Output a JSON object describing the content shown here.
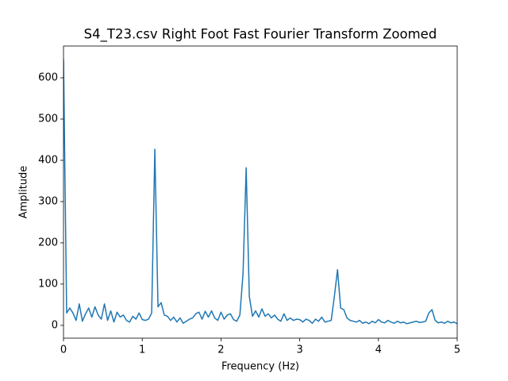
{
  "chart_data": {
    "type": "line",
    "title": "S4_T23.csv Right Foot Fast Fourier Transform Zoomed",
    "xlabel": "Frequency (Hz)",
    "ylabel": "Amplitude",
    "color": "#1f77b4",
    "xlim": [
      0,
      5
    ],
    "xticks": [
      0,
      1,
      2,
      3,
      4,
      5
    ],
    "ylim": [
      -31,
      677
    ],
    "yticks": [
      0,
      100,
      200,
      300,
      400,
      500,
      600
    ],
    "x": [
      0,
      0.04,
      0.08,
      0.12,
      0.16,
      0.2,
      0.24,
      0.28,
      0.32,
      0.36,
      0.4,
      0.44,
      0.48,
      0.52,
      0.56,
      0.6,
      0.64,
      0.68,
      0.72,
      0.76,
      0.8,
      0.84,
      0.88,
      0.92,
      0.96,
      1,
      1.04,
      1.08,
      1.12,
      1.16,
      1.2,
      1.24,
      1.28,
      1.32,
      1.36,
      1.4,
      1.44,
      1.48,
      1.52,
      1.56,
      1.6,
      1.64,
      1.68,
      1.72,
      1.76,
      1.8,
      1.84,
      1.88,
      1.92,
      1.96,
      2,
      2.04,
      2.08,
      2.12,
      2.16,
      2.2,
      2.24,
      2.28,
      2.32,
      2.36,
      2.4,
      2.44,
      2.48,
      2.52,
      2.56,
      2.6,
      2.64,
      2.68,
      2.72,
      2.76,
      2.8,
      2.84,
      2.88,
      2.92,
      2.96,
      3,
      3.04,
      3.08,
      3.12,
      3.16,
      3.2,
      3.24,
      3.28,
      3.32,
      3.36,
      3.4,
      3.44,
      3.48,
      3.52,
      3.56,
      3.6,
      3.64,
      3.68,
      3.72,
      3.76,
      3.8,
      3.84,
      3.88,
      3.92,
      3.96,
      4,
      4.04,
      4.08,
      4.12,
      4.16,
      4.2,
      4.24,
      4.28,
      4.32,
      4.36,
      4.4,
      4.44,
      4.48,
      4.52,
      4.56,
      4.6,
      4.64,
      4.68,
      4.72,
      4.76,
      4.8,
      4.84,
      4.88,
      4.92,
      4.96,
      5
    ],
    "values": [
      645,
      30,
      42,
      30,
      12,
      52,
      10,
      28,
      42,
      20,
      45,
      25,
      15,
      52,
      12,
      35,
      8,
      32,
      20,
      25,
      12,
      8,
      22,
      15,
      30,
      14,
      12,
      15,
      30,
      427,
      45,
      55,
      25,
      22,
      12,
      20,
      8,
      18,
      5,
      10,
      15,
      18,
      28,
      32,
      15,
      34,
      20,
      35,
      18,
      12,
      32,
      15,
      25,
      28,
      14,
      10,
      25,
      125,
      382,
      70,
      22,
      35,
      20,
      40,
      22,
      28,
      18,
      25,
      15,
      10,
      28,
      12,
      18,
      12,
      15,
      14,
      8,
      15,
      12,
      5,
      15,
      10,
      20,
      8,
      10,
      12,
      70,
      135,
      42,
      38,
      18,
      12,
      10,
      8,
      12,
      5,
      8,
      4,
      10,
      6,
      14,
      8,
      6,
      12,
      8,
      5,
      10,
      6,
      8,
      4,
      6,
      8,
      10,
      7,
      8,
      10,
      30,
      38,
      12,
      6,
      8,
      5,
      10,
      6,
      8,
      4
    ]
  }
}
